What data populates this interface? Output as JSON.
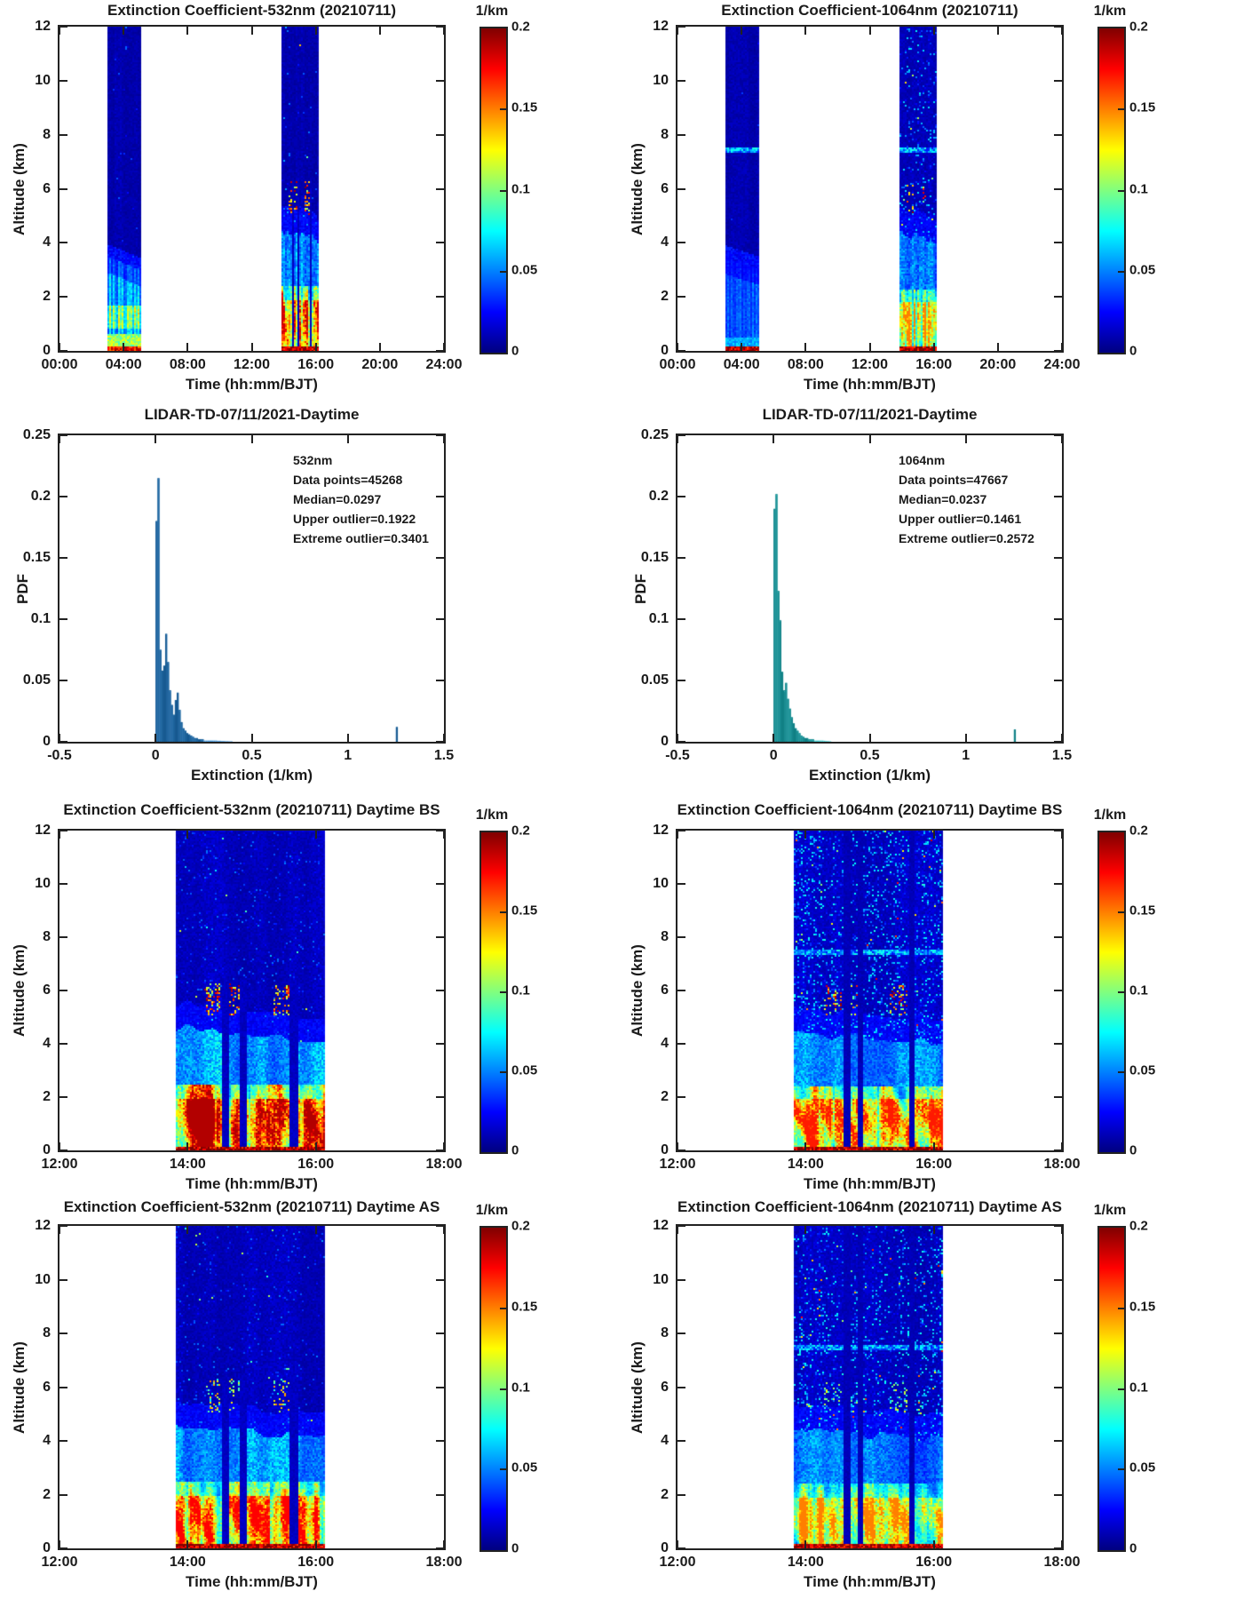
{
  "figure": {
    "background": "#ffffff",
    "text_color": "#1a1a1a",
    "axis_color": "#222222",
    "jet_colormap": [
      "#00007f",
      "#0000ff",
      "#00ffff",
      "#ffff00",
      "#ff0000",
      "#800000"
    ]
  },
  "chart_data": [
    {
      "id": "ext-532-daytime",
      "type": "heatmap",
      "title": "Extinction Coefficient-532nm (20210711)",
      "xlabel": "Time (hh:mm/BJT)",
      "ylabel": "Altitude (km)",
      "x_range_hours": [
        0,
        24
      ],
      "x_ticks": [
        "00:00",
        "04:00",
        "08:00",
        "12:00",
        "16:00",
        "20:00",
        "24:00"
      ],
      "y_range_km": [
        0,
        12
      ],
      "y_ticks": [
        "0",
        "2",
        "4",
        "6",
        "8",
        "10",
        "12"
      ],
      "colorbar": {
        "title": "1/km",
        "range": [
          0,
          0.2
        ],
        "ticks": [
          "0",
          "0.05",
          "0.1",
          "0.15",
          "0.2"
        ]
      },
      "description": "532nm lidar extinction curtain; data bands ~03:00-05:00 and ~13:50-16:10 BJT; aerosol layer below ~3.5 km in morning, afternoon layer below ~4.5 km with strong cloud returns near 5-6 km",
      "render": {
        "bands": [
          {
            "t": [
              3.0,
              5.05
            ],
            "seed": 11,
            "upper_base": 0.009,
            "speckle": 0.006,
            "speckle_vmax": 0.05,
            "aerosol": {
              "z_top": [
                3.5,
                3.0
              ],
              "v": 0.06,
              "stripe": 0.3,
              "yellow": {
                "z": [
                  0.8,
                  1.65
                ],
                "v": 0.098
              },
              "near_surface": {
                "z": 0.6,
                "v": 0.105
              }
            },
            "surface": {
              "h": 0.14,
              "v": 0.175
            }
          },
          {
            "t": [
              13.85,
              16.15
            ],
            "seed": 12,
            "upper_base": 0.01,
            "speckle": 0.02,
            "speckle_vmax": 0.06,
            "spots": {
              "z": [
                5.0,
                6.3
              ],
              "clusters": [
                [
                  14.25,
                  14.52
                ],
                [
                  14.6,
                  14.8
                ],
                [
                  15.33,
                  15.58
                ]
              ],
              "density": 0.3,
              "v": [
                0.1,
                0.2
              ]
            },
            "cyan": {
              "z_top": [
                4.5,
                4.05
              ],
              "z_bot": 2.3,
              "v": 0.055
            },
            "lower": {
              "z_top": 2.4,
              "v": 0.1,
              "amp": 0.07,
              "vcap": 0.185
            },
            "gaps": [
              [
                14.53,
                14.64
              ],
              [
                14.8,
                14.91
              ],
              [
                15.59,
                15.71
              ]
            ],
            "gap_v": 0.013,
            "gap_ztop": 6.4,
            "surface": {
              "h": 0.14,
              "v": 0.19
            }
          }
        ]
      }
    },
    {
      "id": "ext-1064-daytime",
      "type": "heatmap",
      "title": "Extinction Coefficient-1064nm (20210711)",
      "xlabel": "Time (hh:mm/BJT)",
      "ylabel": "Altitude (km)",
      "x_range_hours": [
        0,
        24
      ],
      "x_ticks": [
        "00:00",
        "04:00",
        "08:00",
        "12:00",
        "16:00",
        "20:00",
        "24:00"
      ],
      "y_range_km": [
        0,
        12
      ],
      "y_ticks": [
        "0",
        "2",
        "4",
        "6",
        "8",
        "10",
        "12"
      ],
      "colorbar": {
        "title": "1/km",
        "range": [
          0,
          0.2
        ],
        "ticks": [
          "0",
          "0.05",
          "0.1",
          "0.15",
          "0.2"
        ]
      },
      "description": "1064nm lidar extinction curtain; same bands as 532nm; thin layer near 7.5 km; noisier afternoon upper levels",
      "render": {
        "bands": [
          {
            "t": [
              3.0,
              5.05
            ],
            "seed": 21,
            "upper_base": 0.009,
            "speckle": 0.004,
            "speckle_vmax": 0.04,
            "line75": 0.055,
            "aerosol": {
              "z_top": [
                3.45,
                3.05
              ],
              "v": 0.042,
              "stripe": 0.18,
              "near_surface": {
                "z": 0.5,
                "v": 0.06
              }
            },
            "surface": {
              "h": 0.14,
              "v": 0.19
            }
          },
          {
            "t": [
              13.85,
              16.15
            ],
            "seed": 22,
            "upper_base": 0.011,
            "speckle": 0.09,
            "speckle_vmax": 0.07,
            "line75": 0.055,
            "spots": {
              "z": [
                5.0,
                6.2
              ],
              "clusters": [
                [
                  14.32,
                  14.55
                ],
                [
                  14.62,
                  14.78
                ],
                [
                  15.3,
                  15.55
                ]
              ],
              "density": 0.22,
              "v": [
                0.09,
                0.2
              ]
            },
            "cyan": {
              "z_top": [
                4.35,
                4.0
              ],
              "z_bot": 2.2,
              "v": 0.048
            },
            "lower": {
              "z_top": 2.3,
              "v": 0.085,
              "amp": 0.055,
              "vcap": 0.15
            },
            "gaps": [
              [
                14.58,
                14.68
              ],
              [
                14.8,
                14.9
              ]
            ],
            "gap_v": 0.012,
            "gap_ztop": 12,
            "surface": {
              "h": 0.14,
              "v": 0.19
            }
          }
        ]
      }
    },
    {
      "id": "pdf-532",
      "type": "histogram",
      "title": "LIDAR-TD-07/11/2021-Daytime",
      "xlabel": "Extinction (1/km)",
      "ylabel": "PDF",
      "x_range": [
        -0.5,
        1.5
      ],
      "x_ticks": [
        "-0.5",
        "0",
        "0.5",
        "1",
        "1.5"
      ],
      "y_range": [
        0,
        0.25
      ],
      "y_ticks": [
        "0",
        "0.05",
        "0.1",
        "0.15",
        "0.2",
        "0.25"
      ],
      "bar_fill": "#4191d3",
      "bar_edge": "#14568c",
      "bin_start": 0,
      "bin_width": 0.01,
      "values": [
        0.18,
        0.215,
        0.075,
        0.058,
        0.062,
        0.088,
        0.065,
        0.042,
        0.03,
        0.022,
        0.034,
        0.04,
        0.026,
        0.016,
        0.011,
        0.009,
        0.007,
        0.006,
        0.005,
        0.004,
        0.003,
        0.003,
        0.002,
        0.002,
        0.002,
        0.001,
        0.001,
        0.001,
        0.001,
        0.001,
        0.001,
        0.001,
        0.0008,
        0.0008,
        0.0006,
        0.0006,
        0.0005,
        0.0005,
        0.0004,
        0.0004
      ],
      "outlier_bar": {
        "x": 1.25,
        "height": 0.012
      },
      "annotation": [
        "532nm",
        "Data points=45268",
        "Median=0.0297",
        "Upper outlier=0.1922",
        "Extreme outlier=0.3401"
      ]
    },
    {
      "id": "pdf-1064",
      "type": "histogram",
      "title": "LIDAR-TD-07/11/2021-Daytime",
      "xlabel": "Extinction (1/km)",
      "ylabel": "PDF",
      "x_range": [
        -0.5,
        1.5
      ],
      "x_ticks": [
        "-0.5",
        "0",
        "0.5",
        "1",
        "1.5"
      ],
      "y_range": [
        0,
        0.25
      ],
      "y_ticks": [
        "0",
        "0.05",
        "0.1",
        "0.15",
        "0.2",
        "0.25"
      ],
      "bar_fill": "#3ec5c8",
      "bar_edge": "#0e7b80",
      "bin_start": 0,
      "bin_width": 0.01,
      "values": [
        0.19,
        0.202,
        0.123,
        0.099,
        0.057,
        0.042,
        0.048,
        0.035,
        0.027,
        0.02,
        0.015,
        0.011,
        0.009,
        0.007,
        0.005,
        0.004,
        0.003,
        0.003,
        0.002,
        0.002,
        0.002,
        0.001,
        0.001,
        0.001,
        0.001,
        0.001,
        0.0008,
        0.0006,
        0.0005,
        0.0004
      ],
      "outlier_bar": {
        "x": 1.25,
        "height": 0.01
      },
      "annotation": [
        "1064nm",
        "Data points=47667",
        "Median=0.0237",
        "Upper outlier=0.1461",
        "Extreme outlier=0.2572"
      ]
    },
    {
      "id": "ext-532-daytime-bs",
      "type": "heatmap",
      "title": "Extinction Coefficient-532nm (20210711) Daytime BS",
      "xlabel": "Time (hh:mm/BJT)",
      "ylabel": "Altitude (km)",
      "x_range_hours": [
        12,
        18
      ],
      "x_ticks": [
        "12:00",
        "14:00",
        "16:00",
        "18:00"
      ],
      "y_range_km": [
        0,
        12
      ],
      "y_ticks": [
        "0",
        "2",
        "4",
        "6",
        "8",
        "10",
        "12"
      ],
      "colorbar": {
        "title": "1/km",
        "range": [
          0,
          0.2
        ],
        "ticks": [
          "0",
          "0.05",
          "0.1",
          "0.15",
          "0.2"
        ]
      },
      "description": "Zoomed daytime 532nm extinction before screening (BS), ~13:49-16:08 BJT; cloud returns 5-6 km; strong boundary-layer aerosol below ~2.4 km; dark no-signal gap columns",
      "render": {
        "bands": [
          {
            "t": [
              13.82,
              16.13
            ],
            "seed": 51,
            "upper_base": 0.012,
            "speckle": 0.05,
            "speckle_vmax": 0.05,
            "spots": {
              "z": [
                5.05,
                6.3
              ],
              "clusters": [
                [
                  14.25,
                  14.52
                ],
                [
                  14.6,
                  14.82
                ],
                [
                  15.33,
                  15.6
                ]
              ],
              "density": 0.32,
              "v": [
                0.1,
                0.2
              ]
            },
            "cyan": {
              "z_top": [
                4.6,
                4.1
              ],
              "z_bot": 2.35,
              "v": 0.055
            },
            "lower": {
              "z_top": 2.45,
              "v": 0.105,
              "amp": 0.075,
              "vcap": 0.19
            },
            "gaps": [
              [
                14.53,
                14.65
              ],
              [
                14.8,
                14.92
              ],
              [
                15.6,
                15.72
              ]
            ],
            "gap_v": 0.013,
            "gap_ztop": 6.4,
            "surface": {
              "h": 0.15,
              "v": 0.19
            }
          }
        ]
      }
    },
    {
      "id": "ext-1064-daytime-bs",
      "type": "heatmap",
      "title": "Extinction Coefficient-1064nm (20210711) Daytime BS",
      "xlabel": "Time (hh:mm/BJT)",
      "ylabel": "Altitude (km)",
      "x_range_hours": [
        12,
        18
      ],
      "x_ticks": [
        "12:00",
        "14:00",
        "16:00",
        "18:00"
      ],
      "y_range_km": [
        0,
        12
      ],
      "y_ticks": [
        "0",
        "2",
        "4",
        "6",
        "8",
        "10",
        "12"
      ],
      "colorbar": {
        "title": "1/km",
        "range": [
          0,
          0.2
        ],
        "ticks": [
          "0",
          "0.05",
          "0.1",
          "0.15",
          "0.2"
        ]
      },
      "description": "Zoomed daytime 1064nm extinction before screening (BS); speckled noisy upper levels, layer near 7.5 km, cloud returns 5-6 km",
      "render": {
        "bands": [
          {
            "t": [
              13.82,
              16.13
            ],
            "seed": 61,
            "upper_base": 0.013,
            "speckle": 0.12,
            "speckle_vmax": 0.08,
            "line75": 0.055,
            "spots": {
              "z": [
                5.05,
                6.2
              ],
              "clusters": [
                [
                  14.3,
                  14.55
                ],
                [
                  14.62,
                  14.8
                ],
                [
                  15.3,
                  15.58
                ]
              ],
              "density": 0.24,
              "v": [
                0.09,
                0.2
              ]
            },
            "cyan": {
              "z_top": [
                4.4,
                4.05
              ],
              "z_bot": 2.3,
              "v": 0.048
            },
            "lower": {
              "z_top": 2.4,
              "v": 0.09,
              "amp": 0.06,
              "vcap": 0.17
            },
            "gaps": [
              [
                14.6,
                14.7
              ],
              [
                14.82,
                14.9
              ],
              [
                15.62,
                15.7
              ]
            ],
            "gap_v": 0.011,
            "gap_ztop": 12,
            "surface": {
              "h": 0.15,
              "v": 0.19
            }
          }
        ]
      }
    },
    {
      "id": "ext-532-daytime-as",
      "type": "heatmap",
      "title": "Extinction Coefficient-532nm (20210711) Daytime AS",
      "xlabel": "Time (hh:mm/BJT)",
      "ylabel": "Altitude (km)",
      "x_range_hours": [
        12,
        18
      ],
      "x_ticks": [
        "12:00",
        "14:00",
        "16:00",
        "18:00"
      ],
      "y_range_km": [
        0,
        12
      ],
      "y_ticks": [
        "0",
        "2",
        "4",
        "6",
        "8",
        "10",
        "12"
      ],
      "colorbar": {
        "title": "1/km",
        "range": [
          0,
          0.2
        ],
        "ticks": [
          "0",
          "0.05",
          "0.1",
          "0.15",
          "0.2"
        ]
      },
      "description": "Zoomed daytime 532nm extinction after screening (AS); cloud outliers at 5-6 km largely removed (weaker green/yellow spots)",
      "render": {
        "bands": [
          {
            "t": [
              13.82,
              16.13
            ],
            "seed": 71,
            "upper_base": 0.012,
            "speckle": 0.05,
            "speckle_vmax": 0.05,
            "spots": {
              "z": [
                5.05,
                6.3
              ],
              "clusters": [
                [
                  14.25,
                  14.52
                ],
                [
                  14.6,
                  14.82
                ],
                [
                  15.33,
                  15.6
                ]
              ],
              "density": 0.2,
              "v": [
                0.07,
                0.15
              ]
            },
            "cyan": {
              "z_top": [
                4.6,
                4.1
              ],
              "z_bot": 2.35,
              "v": 0.055
            },
            "lower": {
              "z_top": 2.45,
              "v": 0.1,
              "amp": 0.07,
              "vcap": 0.175
            },
            "gaps": [
              [
                14.53,
                14.65
              ],
              [
                14.8,
                14.92
              ],
              [
                15.6,
                15.72
              ]
            ],
            "gap_v": 0.013,
            "gap_ztop": 6.4,
            "surface": {
              "h": 0.15,
              "v": 0.19
            }
          }
        ]
      }
    },
    {
      "id": "ext-1064-daytime-as",
      "type": "heatmap",
      "title": "Extinction Coefficient-1064nm (20210711) Daytime AS",
      "xlabel": "Time (hh:mm/BJT)",
      "ylabel": "Altitude (km)",
      "x_range_hours": [
        12,
        18
      ],
      "x_ticks": [
        "12:00",
        "14:00",
        "16:00",
        "18:00"
      ],
      "y_range_km": [
        0,
        12
      ],
      "y_ticks": [
        "0",
        "2",
        "4",
        "6",
        "8",
        "10",
        "12"
      ],
      "colorbar": {
        "title": "1/km",
        "range": [
          0,
          0.2
        ],
        "ticks": [
          "0",
          "0.05",
          "0.1",
          "0.15",
          "0.2"
        ]
      },
      "description": "Zoomed daytime 1064nm extinction after screening (AS); outliers reduced, speckled upper levels remain",
      "render": {
        "bands": [
          {
            "t": [
              13.82,
              16.13
            ],
            "seed": 81,
            "upper_base": 0.013,
            "speckle": 0.12,
            "speckle_vmax": 0.08,
            "line75": 0.055,
            "spots": {
              "z": [
                5.05,
                6.2
              ],
              "clusters": [
                [
                  14.3,
                  14.55
                ],
                [
                  14.62,
                  14.8
                ],
                [
                  15.3,
                  15.58
                ]
              ],
              "density": 0.14,
              "v": [
                0.06,
                0.13
              ]
            },
            "cyan": {
              "z_top": [
                4.4,
                4.05
              ],
              "z_bot": 2.3,
              "v": 0.048
            },
            "lower": {
              "z_top": 2.4,
              "v": 0.085,
              "amp": 0.05,
              "vcap": 0.15
            },
            "gaps": [
              [
                14.6,
                14.7
              ],
              [
                14.82,
                14.9
              ],
              [
                15.62,
                15.7
              ]
            ],
            "gap_v": 0.011,
            "gap_ztop": 12,
            "surface": {
              "h": 0.15,
              "v": 0.19
            }
          }
        ]
      }
    }
  ]
}
